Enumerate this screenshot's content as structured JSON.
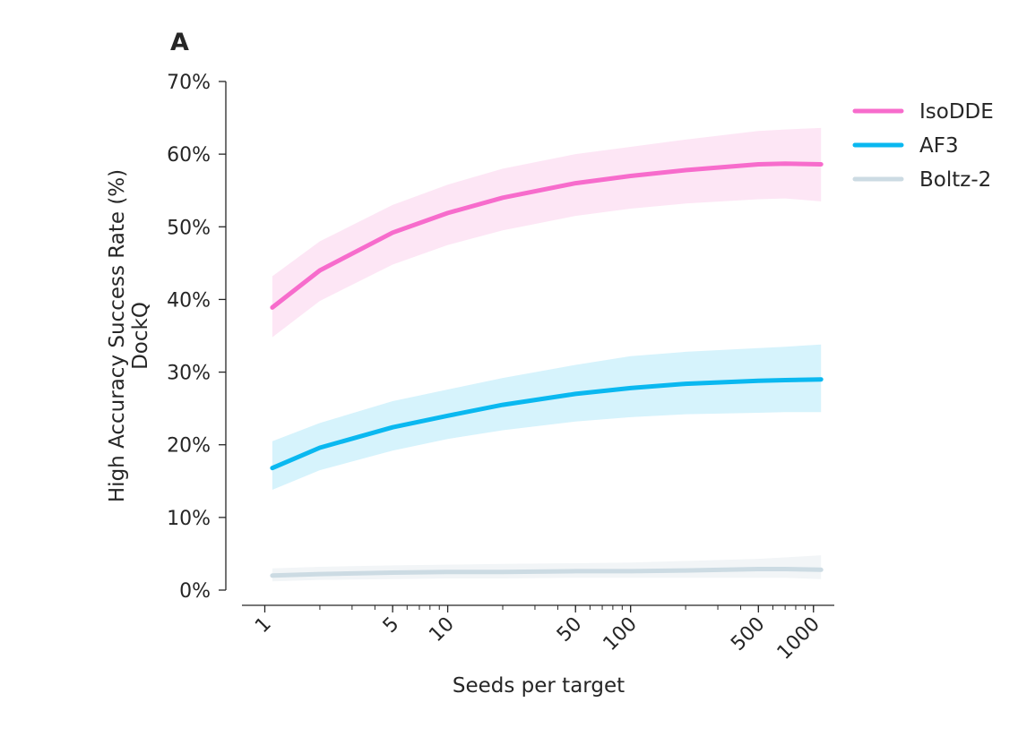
{
  "chart_data": {
    "type": "line",
    "panel_label": "A",
    "title": "",
    "xlabel": "Seeds per target",
    "ylabel_line1": "High Accuracy Success Rate (%)",
    "ylabel_line2": "DockQ",
    "x_scale": "log",
    "xlim": [
      0.75,
      1300
    ],
    "ylim": [
      0,
      70
    ],
    "x_ticks": [
      {
        "value": 1,
        "label": "1"
      },
      {
        "value": 5,
        "label": "5"
      },
      {
        "value": 10,
        "label": "10"
      },
      {
        "value": 50,
        "label": "50"
      },
      {
        "value": 100,
        "label": "100"
      },
      {
        "value": 500,
        "label": "500"
      },
      {
        "value": 1000,
        "label": "1000"
      }
    ],
    "y_ticks": [
      {
        "value": 0,
        "label": "0%"
      },
      {
        "value": 10,
        "label": "10%"
      },
      {
        "value": 20,
        "label": "20%"
      },
      {
        "value": 30,
        "label": "30%"
      },
      {
        "value": 40,
        "label": "40%"
      },
      {
        "value": 50,
        "label": "50%"
      },
      {
        "value": 60,
        "label": "60%"
      },
      {
        "value": 70,
        "label": "70%"
      }
    ],
    "grid": false,
    "legend_position": "top-right",
    "x": [
      1.1,
      2,
      5,
      10,
      20,
      50,
      100,
      200,
      500,
      700,
      1100
    ],
    "series": [
      {
        "name": "IsoDDE",
        "color": "#f76ccc",
        "band_color": "#fde6f5",
        "values": [
          38.9,
          44.0,
          49.2,
          51.9,
          54.0,
          56.0,
          57.0,
          57.8,
          58.6,
          58.7,
          58.6
        ],
        "lower": [
          34.8,
          39.8,
          44.8,
          47.5,
          49.5,
          51.5,
          52.5,
          53.2,
          53.8,
          53.9,
          53.5
        ],
        "upper": [
          43.2,
          48.0,
          53.0,
          55.8,
          58.0,
          60.0,
          61.0,
          62.0,
          63.2,
          63.4,
          63.6
        ]
      },
      {
        "name": "AF3",
        "color": "#0ab8f0",
        "band_color": "#d6f3fc",
        "values": [
          16.8,
          19.6,
          22.4,
          24.0,
          25.5,
          27.0,
          27.8,
          28.4,
          28.8,
          28.9,
          29.0
        ],
        "lower": [
          13.8,
          16.5,
          19.2,
          20.8,
          22.0,
          23.2,
          23.8,
          24.2,
          24.4,
          24.5,
          24.5
        ],
        "upper": [
          20.5,
          23.0,
          26.0,
          27.6,
          29.2,
          31.0,
          32.2,
          32.8,
          33.3,
          33.5,
          33.8
        ]
      },
      {
        "name": "Boltz-2",
        "color": "#ccdbe3",
        "band_color": "#f2f5f7",
        "values": [
          2.0,
          2.2,
          2.4,
          2.5,
          2.5,
          2.6,
          2.6,
          2.7,
          2.9,
          2.9,
          2.8
        ],
        "lower": [
          1.2,
          1.4,
          1.5,
          1.6,
          1.6,
          1.7,
          1.7,
          1.7,
          1.7,
          1.7,
          1.5
        ],
        "upper": [
          3.0,
          3.2,
          3.4,
          3.5,
          3.6,
          3.7,
          3.8,
          4.0,
          4.3,
          4.5,
          4.8
        ]
      }
    ]
  }
}
